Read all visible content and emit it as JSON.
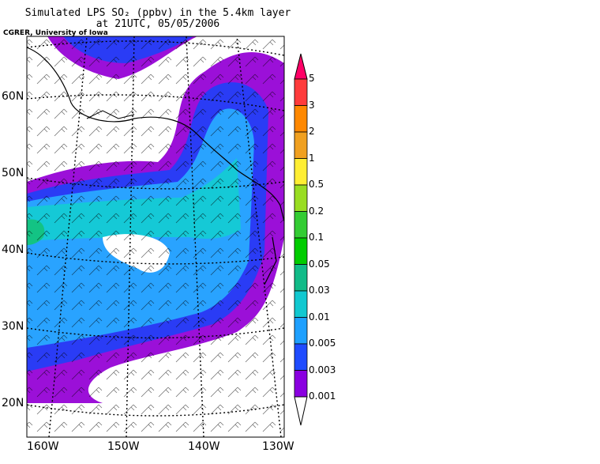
{
  "title_line1": "Simulated LPS SO₂ (ppbv) in the 5.4km layer",
  "title_line2": "at 21UTC, 05/05/2006",
  "credit": "CGRER, University of Iowa",
  "lat_labels": [
    "60N",
    "50N",
    "40N",
    "30N",
    "20N"
  ],
  "lon_labels": [
    "160W",
    "150W",
    "140W",
    "130W"
  ],
  "colorbar": {
    "levels": [
      "5",
      "3",
      "2",
      "1",
      "0.5",
      "0.2",
      "0.1",
      "0.05",
      "0.03",
      "0.01",
      "0.005",
      "0.003",
      "0.001"
    ],
    "colors": [
      "#ff0066",
      "#ff3b3b",
      "#ff8800",
      "#f0a020",
      "#ffee33",
      "#99dd22",
      "#33cc33",
      "#00cc00",
      "#11bb88",
      "#11c8d0",
      "#1ea0ff",
      "#1f4bff",
      "#8a00e0",
      "#b800d0"
    ]
  },
  "map_colors": {
    "land": "#ffffff",
    "purple": "#9b10d8",
    "blue": "#2a3cf5",
    "lightblue": "#29a3ff",
    "cyan": "#15c9d6",
    "green": "#13c384"
  }
}
